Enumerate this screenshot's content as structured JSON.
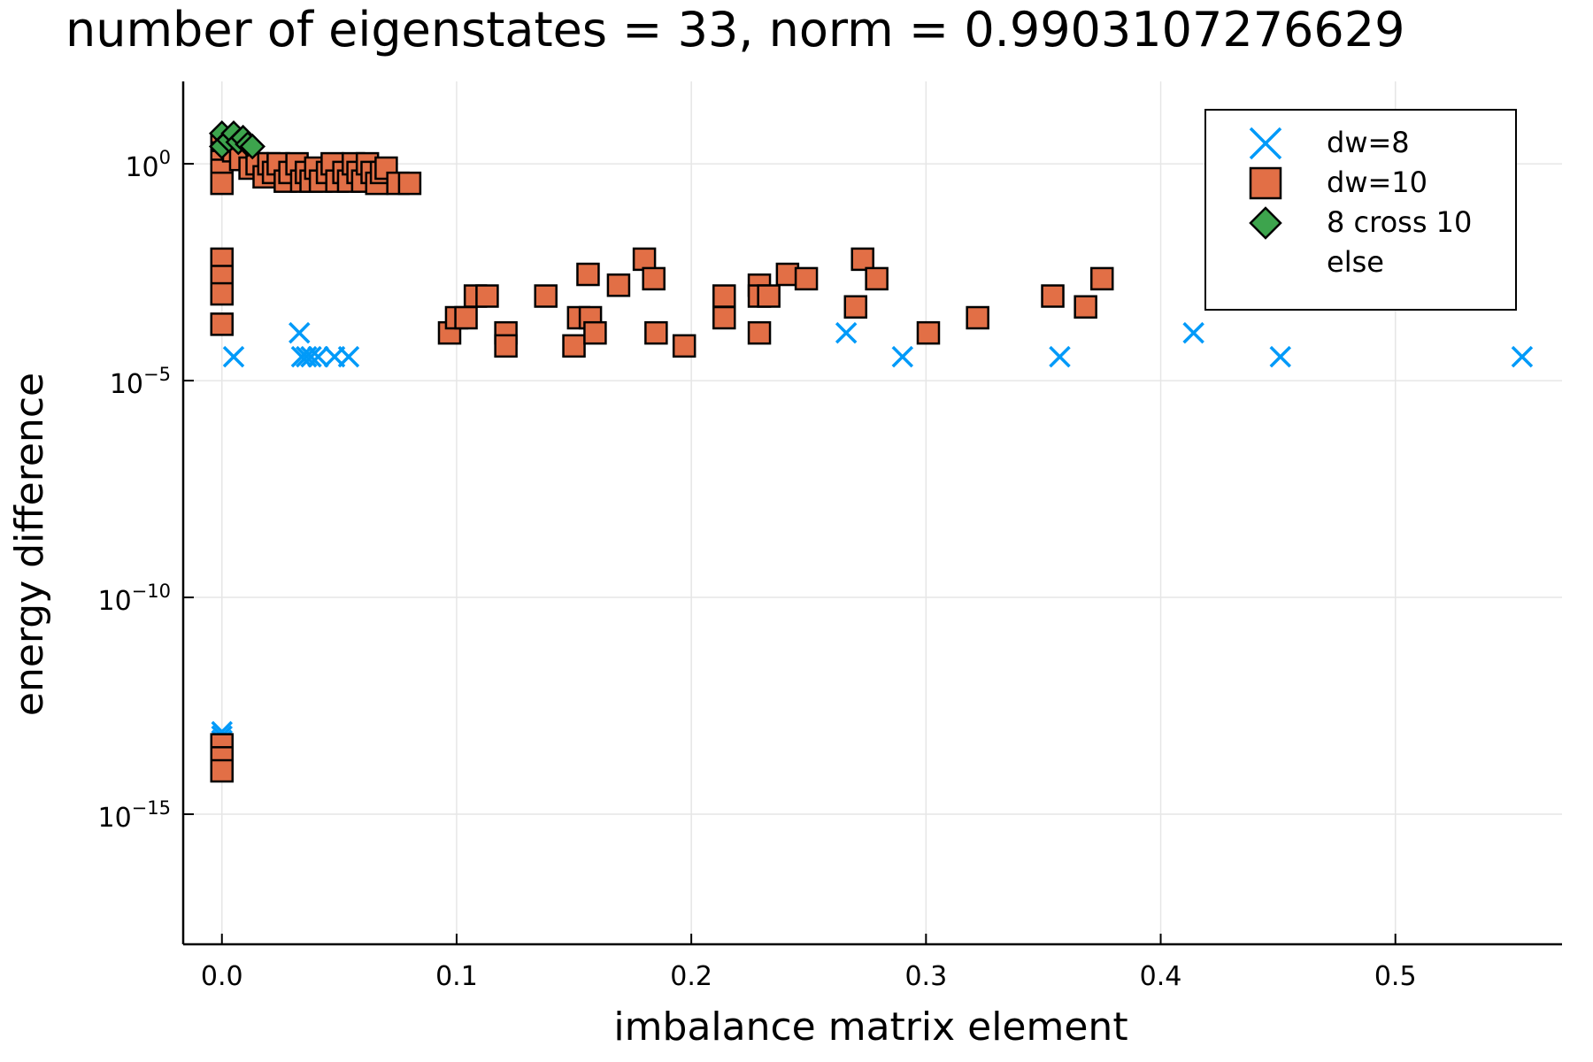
{
  "chart_data": {
    "type": "scatter",
    "title": "number of eigenstates = 33, norm = 0.9903107276629",
    "xlabel": "imbalance matrix element",
    "ylabel": "energy difference",
    "xlim": [
      -0.0165,
      0.571
    ],
    "ylim_log10": [
      -18,
      1.9
    ],
    "yscale": "log10",
    "grid": true,
    "legend_position": "top-right",
    "x_ticks": [
      {
        "value": 0.0,
        "label": "0.0"
      },
      {
        "value": 0.1,
        "label": "0.1"
      },
      {
        "value": 0.2,
        "label": "0.2"
      },
      {
        "value": 0.3,
        "label": "0.3"
      },
      {
        "value": 0.4,
        "label": "0.4"
      },
      {
        "value": 0.5,
        "label": "0.5"
      }
    ],
    "y_ticks": [
      {
        "exp": 0,
        "base": "10",
        "sup": "0"
      },
      {
        "exp": -5,
        "base": "10",
        "sup": "−5"
      },
      {
        "exp": -10,
        "base": "10",
        "sup": "−10"
      },
      {
        "exp": -15,
        "base": "10",
        "sup": "−15"
      }
    ],
    "series": [
      {
        "name": "dw=8",
        "marker": "x",
        "color": "#009af9",
        "points": [
          [
            0.0,
            -13.1
          ],
          [
            0.0,
            -13.2
          ],
          [
            0.0,
            -13.3
          ],
          [
            0.0,
            -13.4
          ],
          [
            0.005,
            -4.45
          ],
          [
            0.033,
            -3.9
          ],
          [
            0.034,
            -4.45
          ],
          [
            0.036,
            -4.45
          ],
          [
            0.038,
            -4.45
          ],
          [
            0.041,
            -4.45
          ],
          [
            0.048,
            -4.45
          ],
          [
            0.054,
            -4.45
          ],
          [
            0.266,
            -3.9
          ],
          [
            0.29,
            -4.45
          ],
          [
            0.357,
            -4.45
          ],
          [
            0.414,
            -3.9
          ],
          [
            0.451,
            -4.45
          ],
          [
            0.554,
            -4.45
          ]
        ]
      },
      {
        "name": "dw=10",
        "marker": "square",
        "color": "#e26f46",
        "points": [
          [
            0.0,
            0.45
          ],
          [
            0.0,
            0.25
          ],
          [
            0.0,
            0.05
          ],
          [
            0.0,
            -0.15
          ],
          [
            0.0,
            -0.45
          ],
          [
            0.0,
            -2.2
          ],
          [
            0.0,
            -2.6
          ],
          [
            0.0,
            -3.0
          ],
          [
            0.0,
            -3.7
          ],
          [
            0.0,
            -13.4
          ],
          [
            0.0,
            -13.7
          ],
          [
            0.0,
            -14.0
          ],
          [
            0.005,
            0.3
          ],
          [
            0.008,
            0.1
          ],
          [
            0.012,
            -0.1
          ],
          [
            0.015,
            0.0
          ],
          [
            0.018,
            -0.3
          ],
          [
            0.02,
            0.0
          ],
          [
            0.022,
            -0.2
          ],
          [
            0.024,
            0.0
          ],
          [
            0.027,
            -0.4
          ],
          [
            0.029,
            -0.2
          ],
          [
            0.032,
            0.0
          ],
          [
            0.034,
            -0.4
          ],
          [
            0.036,
            -0.2
          ],
          [
            0.038,
            -0.4
          ],
          [
            0.04,
            -0.1
          ],
          [
            0.042,
            -0.4
          ],
          [
            0.045,
            -0.2
          ],
          [
            0.047,
            0.0
          ],
          [
            0.049,
            -0.4
          ],
          [
            0.052,
            -0.2
          ],
          [
            0.054,
            -0.4
          ],
          [
            0.056,
            0.0
          ],
          [
            0.058,
            -0.2
          ],
          [
            0.06,
            -0.4
          ],
          [
            0.062,
            0.0
          ],
          [
            0.064,
            -0.2
          ],
          [
            0.066,
            -0.45
          ],
          [
            0.068,
            -0.2
          ],
          [
            0.07,
            -0.1
          ],
          [
            0.075,
            -0.45
          ],
          [
            0.08,
            -0.45
          ],
          [
            0.097,
            -3.9
          ],
          [
            0.1,
            -3.55
          ],
          [
            0.104,
            -3.55
          ],
          [
            0.108,
            -3.05
          ],
          [
            0.113,
            -3.05
          ],
          [
            0.121,
            -3.9
          ],
          [
            0.121,
            -4.2
          ],
          [
            0.138,
            -3.05
          ],
          [
            0.15,
            -4.2
          ],
          [
            0.152,
            -3.55
          ],
          [
            0.156,
            -2.55
          ],
          [
            0.157,
            -3.55
          ],
          [
            0.159,
            -3.9
          ],
          [
            0.169,
            -2.8
          ],
          [
            0.18,
            -2.2
          ],
          [
            0.184,
            -2.65
          ],
          [
            0.185,
            -3.9
          ],
          [
            0.197,
            -4.2
          ],
          [
            0.214,
            -3.05
          ],
          [
            0.214,
            -3.55
          ],
          [
            0.229,
            -2.8
          ],
          [
            0.229,
            -3.05
          ],
          [
            0.229,
            -3.9
          ],
          [
            0.233,
            -3.05
          ],
          [
            0.241,
            -2.55
          ],
          [
            0.249,
            -2.65
          ],
          [
            0.27,
            -3.3
          ],
          [
            0.273,
            -2.2
          ],
          [
            0.279,
            -2.65
          ],
          [
            0.301,
            -3.9
          ],
          [
            0.322,
            -3.55
          ],
          [
            0.354,
            -3.05
          ],
          [
            0.368,
            -3.3
          ],
          [
            0.375,
            -2.65
          ]
        ]
      },
      {
        "name": "8 cross 10",
        "marker": "diamond",
        "color": "#3da44d",
        "points": [
          [
            0.0,
            0.7
          ],
          [
            0.0,
            0.4
          ],
          [
            0.003,
            0.55
          ],
          [
            0.005,
            0.7
          ],
          [
            0.007,
            0.5
          ],
          [
            0.009,
            0.6
          ],
          [
            0.011,
            0.45
          ],
          [
            0.013,
            0.4
          ]
        ]
      },
      {
        "name": "else",
        "marker": "none",
        "color": "#c271d2",
        "points": []
      }
    ]
  }
}
